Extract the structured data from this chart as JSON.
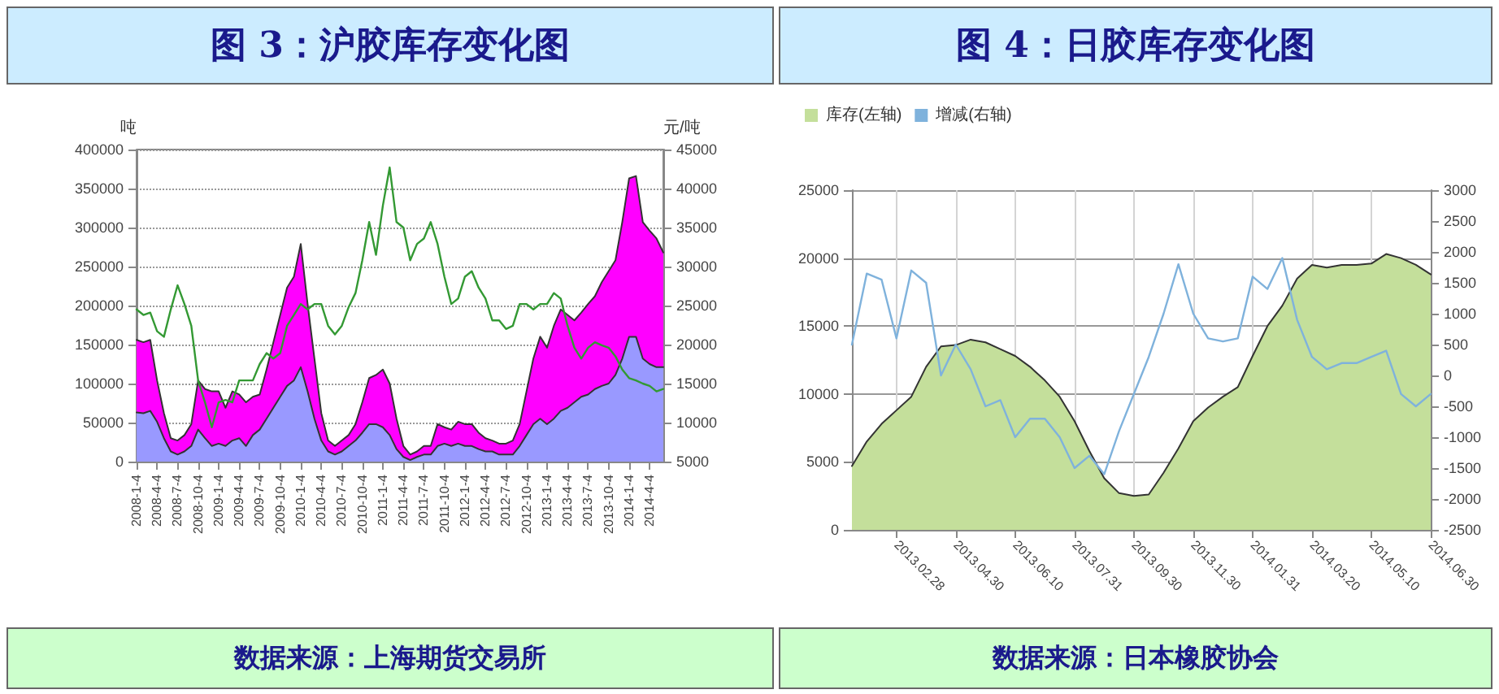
{
  "chart_data": [
    {
      "type": "area",
      "title": "图 3：沪胶库存变化图",
      "ylabel": "吨",
      "y2label": "元/吨",
      "annotations": [
        "数据来源：上海期货交易所"
      ],
      "categories": [
        "2008-1-4",
        null,
        null,
        "2008-4-4",
        null,
        null,
        "2008-7-4",
        null,
        null,
        "2008-10-4",
        null,
        null,
        "2009-1-4",
        null,
        null,
        "2009-4-4",
        null,
        null,
        "2009-7-4",
        null,
        null,
        "2009-10-4",
        null,
        null,
        "2010-1-4",
        null,
        null,
        "2010-4-4",
        null,
        null,
        "2010-7-4",
        null,
        null,
        "2010-10-4",
        null,
        null,
        "2011-1-4",
        null,
        null,
        "2011-4-4",
        null,
        null,
        "2011-7-4",
        null,
        null,
        "2011-10-4",
        null,
        null,
        "2012-1-4",
        null,
        null,
        "2012-4-4",
        null,
        null,
        "2012-7-4",
        null,
        null,
        "2012-10-4",
        null,
        null,
        "2013-1-4",
        null,
        null,
        "2013-4-4",
        null,
        null,
        "2013-7-4",
        null,
        null,
        "2013-10-4",
        null,
        null,
        "2014-1-4",
        null,
        null,
        "2014-4-4",
        null,
        null
      ],
      "stacked": true,
      "grid": "y",
      "legend": false,
      "marker": "none",
      "ylim": [
        0,
        400000
      ],
      "yticks": [
        0,
        50000,
        100000,
        150000,
        200000,
        250000,
        300000,
        350000,
        400000
      ],
      "y2lim": [
        5000,
        45000
      ],
      "y2ticks": [
        5000,
        10000,
        15000,
        20000,
        25000,
        30000,
        35000,
        40000,
        45000
      ],
      "series": [
        {
          "color": "#9999ff",
          "values": [
            63000,
            62000,
            65000,
            51000,
            30000,
            13000,
            9000,
            13000,
            20000,
            41000,
            30000,
            20000,
            23000,
            20000,
            27000,
            30000,
            20000,
            34000,
            41000,
            55000,
            69000,
            83000,
            97000,
            104000,
            121000,
            90000,
            55000,
            27000,
            13000,
            9000,
            13000,
            20000,
            27000,
            37000,
            48000,
            48000,
            44000,
            34000,
            16000,
            6000,
            2000,
            6000,
            9000,
            9000,
            20000,
            23000,
            20000,
            23000,
            20000,
            20000,
            16000,
            13000,
            13000,
            9000,
            9000,
            9000,
            20000,
            34000,
            48000,
            55000,
            48000,
            55000,
            65000,
            69000,
            76000,
            83000,
            86000,
            93000,
            97000,
            100000,
            111000,
            132000,
            160000,
            160000,
            132000,
            125000,
            121000,
            121000
          ]
        },
        {
          "color": "#ff00ff",
          "values": [
            93000,
            91000,
            91000,
            53000,
            32000,
            17000,
            18000,
            21000,
            28000,
            63000,
            63000,
            70000,
            67000,
            49000,
            63000,
            56000,
            56000,
            49000,
            45000,
            63000,
            84000,
            105000,
            126000,
            133000,
            158000,
            112000,
            77000,
            35000,
            14000,
            11000,
            14000,
            14000,
            21000,
            39000,
            59000,
            63000,
            74000,
            66000,
            39000,
            14000,
            7000,
            7000,
            11000,
            11000,
            28000,
            21000,
            21000,
            28000,
            28000,
            28000,
            21000,
            17000,
            14000,
            14000,
            14000,
            18000,
            28000,
            56000,
            84000,
            105000,
            98000,
            119000,
            130000,
            119000,
            105000,
            108000,
            116000,
            119000,
            133000,
            144000,
            147000,
            175000,
            203000,
            206000,
            175000,
            171000,
            165000,
            147000
          ]
        },
        {
          "type": "line",
          "axis": "y2",
          "color": "#339933",
          "values": [
            24500,
            23800,
            24100,
            21700,
            21000,
            24500,
            27600,
            25200,
            22400,
            15400,
            12600,
            9400,
            12600,
            12900,
            12600,
            15400,
            15400,
            15400,
            17500,
            18900,
            18200,
            18900,
            22400,
            23800,
            25200,
            24500,
            25200,
            25200,
            22400,
            21300,
            22400,
            24800,
            26600,
            30800,
            35700,
            31500,
            37800,
            42700,
            35700,
            35000,
            30800,
            32900,
            33600,
            35700,
            32900,
            28700,
            25200,
            25900,
            28700,
            29400,
            27300,
            25900,
            23100,
            23100,
            22000,
            22400,
            25200,
            25200,
            24500,
            25200,
            25200,
            26600,
            25900,
            22400,
            19600,
            18200,
            19600,
            20300,
            19900,
            19600,
            18500,
            16800,
            15700,
            15400,
            15000,
            14700,
            14000,
            14300
          ]
        }
      ]
    },
    {
      "type": "area",
      "title": "图 4：日胶库存变化图",
      "annotations": [
        "数据来源：日本橡胶协会"
      ],
      "categories": [
        null,
        null,
        null,
        "2013.02.28",
        null,
        null,
        null,
        "2013.04.30",
        null,
        null,
        null,
        "2013.06.10",
        null,
        null,
        null,
        "2013.07.31",
        null,
        null,
        null,
        "2013.09.30",
        null,
        null,
        null,
        "2013.11.30",
        null,
        null,
        null,
        "2014.01.31",
        null,
        null,
        null,
        "2014.03.20",
        null,
        null,
        null,
        "2014.05.10",
        null,
        null,
        null,
        "2014.06.30"
      ],
      "grid": true,
      "legend": "top left",
      "marker": "none",
      "ylim": [
        0,
        25000
      ],
      "yticks": [
        0,
        5000,
        10000,
        15000,
        20000,
        25000
      ],
      "y2lim": [
        -2500,
        3000
      ],
      "y2ticks": [
        -2500,
        -2000,
        -1500,
        -1000,
        -500,
        0,
        500,
        1000,
        1500,
        2000,
        2500,
        3000
      ],
      "series": [
        {
          "name": "库存(左轴)",
          "color": "#c4df9b",
          "values": [
            4700,
            6500,
            7800,
            8800,
            9800,
            12000,
            13500,
            13600,
            14000,
            13800,
            13300,
            12800,
            12000,
            11000,
            9800,
            8000,
            5800,
            3800,
            2700,
            2500,
            2600,
            4200,
            6000,
            8000,
            9000,
            9800,
            10500,
            12800,
            15000,
            16500,
            18500,
            19500,
            19300,
            19500,
            19500,
            19600,
            20300,
            20000,
            19500,
            18800
          ]
        },
        {
          "name": "增减(右轴)",
          "type": "line",
          "axis": "y2",
          "color": "#7fb2dc",
          "values": [
            500,
            1650,
            1550,
            600,
            1700,
            1500,
            0,
            500,
            100,
            -500,
            -400,
            -1000,
            -700,
            -700,
            -1000,
            -1500,
            -1300,
            -1600,
            -900,
            -300,
            300,
            1000,
            1800,
            1000,
            600,
            550,
            600,
            1600,
            1400,
            1900,
            900,
            300,
            100,
            200,
            200,
            300,
            400,
            -300,
            -500,
            -300
          ]
        }
      ]
    }
  ]
}
